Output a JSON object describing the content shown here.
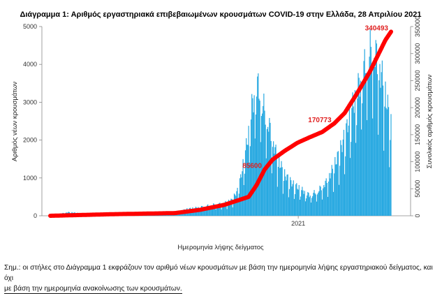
{
  "chart_data": {
    "type": "bar",
    "title": "Διάγραμμα 1: Αριθμός εργαστηριακά επιβεβαιωμένων κρουσμάτων COVID-19 στην Ελλάδα, 28 Απριλίου 2021",
    "xlabel": "Ημερομηνία λήψης δείγματος",
    "ylabel": "Αριθμός νέων κρουσμάτων",
    "y2label": "Συνολικός αριθμός κρουσμάτων",
    "ylim": [
      0,
      5000
    ],
    "y2lim": [
      0,
      350000
    ],
    "yticks": [
      "0",
      "1000",
      "2000",
      "3000",
      "4000",
      "5000"
    ],
    "y2ticks": [
      "0",
      "50000",
      "100000",
      "150000",
      "200000",
      "250000",
      "300000",
      "350000"
    ],
    "xtick_label": "2021",
    "x_start": "2020-02-26",
    "x_end": "2021-04-27",
    "grid": false,
    "series": [
      {
        "name": "",
        "type": "bar",
        "axis": "left",
        "color": "#29a9e1",
        "control_dates": [
          "2020-02-26",
          "2020-03-20",
          "2020-04-10",
          "2020-05-15",
          "2020-06-15",
          "2020-07-15",
          "2020-07-31",
          "2020-08-15",
          "2020-08-31",
          "2020-09-15",
          "2020-09-30",
          "2020-10-10",
          "2020-10-18",
          "2020-10-25",
          "2020-11-01",
          "2020-11-04",
          "2020-11-07",
          "2020-11-10",
          "2020-11-14",
          "2020-11-20",
          "2020-11-27",
          "2020-12-05",
          "2020-12-15",
          "2020-12-25",
          "2021-01-05",
          "2021-01-15",
          "2021-01-25",
          "2021-02-05",
          "2021-02-12",
          "2021-02-20",
          "2021-02-28",
          "2021-03-07",
          "2021-03-14",
          "2021-03-21",
          "2021-03-28",
          "2021-04-04",
          "2021-04-11",
          "2021-04-18",
          "2021-04-27"
        ],
        "control_values": [
          10,
          95,
          55,
          12,
          15,
          30,
          80,
          180,
          230,
          290,
          330,
          420,
          700,
          1450,
          2350,
          2900,
          3200,
          3550,
          3300,
          2800,
          2300,
          1600,
          1100,
          850,
          700,
          550,
          650,
          900,
          1200,
          1600,
          2100,
          2700,
          3200,
          3700,
          4200,
          4550,
          4100,
          3500,
          2400
        ]
      },
      {
        "name": "",
        "type": "line",
        "axis": "right",
        "color": "#ff0000",
        "control_dates": [
          "2020-02-26",
          "2020-05-15",
          "2020-07-31",
          "2020-08-31",
          "2020-09-30",
          "2020-10-31",
          "2020-11-10",
          "2020-11-20",
          "2020-11-30",
          "2020-12-15",
          "2020-12-31",
          "2021-01-15",
          "2021-01-31",
          "2021-02-15",
          "2021-02-28",
          "2021-03-15",
          "2021-03-31",
          "2021-04-10",
          "2021-04-20",
          "2021-04-27"
        ],
        "control_values": [
          0,
          3000,
          5000,
          11000,
          20000,
          35000,
          57000,
          85600,
          104000,
          120000,
          135000,
          145000,
          155000,
          170773,
          190000,
          225000,
          265000,
          295000,
          325000,
          340493
        ]
      }
    ],
    "annotations": [
      {
        "text": "85600",
        "date": "2020-11-20",
        "value": 85600
      },
      {
        "text": "170773",
        "date": "2021-02-15",
        "value": 170773
      },
      {
        "text": "340493",
        "date": "2021-04-27",
        "value": 340493
      }
    ]
  },
  "note": {
    "line1": "Σημ.: οι στήλες στο Διάγραμμα 1 εκφράζουν τον αριθμό νέων κρουσμάτων με βάση την ημερομηνία λήψης εργαστηριακού δείγματος, και όχι",
    "line2": "με βάση την ημερομηνία ανακοίνωσης των κρουσμάτων."
  }
}
